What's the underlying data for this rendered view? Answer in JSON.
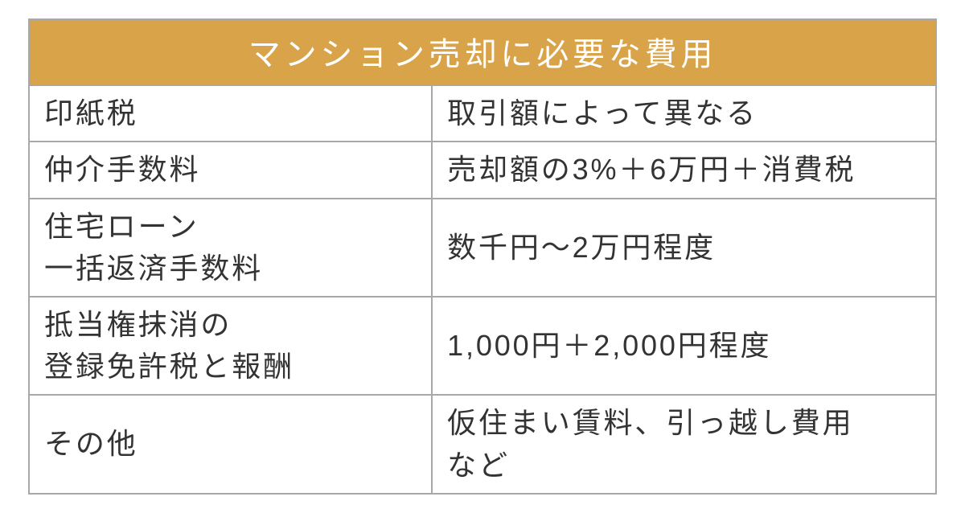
{
  "table": {
    "title": "マンション売却に必要な費用",
    "header_bg": "#d9a34a",
    "header_text_color": "#ffffff",
    "body_text_color": "#333333",
    "border_color": "#a8a8a8",
    "background_color": "#ffffff",
    "title_fontsize": 40,
    "body_fontsize": 36,
    "label_col_width_pct": 44.5,
    "value_col_width_pct": 55.5,
    "rows": [
      {
        "label_lines": [
          "印紙税"
        ],
        "value_lines": [
          "取引額によって異なる"
        ]
      },
      {
        "label_lines": [
          "仲介手数料"
        ],
        "value_lines": [
          "売却額の3%＋6万円＋消費税"
        ]
      },
      {
        "label_lines": [
          "住宅ローン",
          "一括返済手数料"
        ],
        "value_lines": [
          "数千円～2万円程度"
        ]
      },
      {
        "label_lines": [
          "抵当権抹消の",
          "登録免許税と報酬"
        ],
        "value_lines": [
          "1,000円＋2,000円程度"
        ]
      },
      {
        "label_lines": [
          "その他"
        ],
        "value_lines": [
          "仮住まい賃料、引っ越し費用",
          "など"
        ]
      }
    ]
  }
}
